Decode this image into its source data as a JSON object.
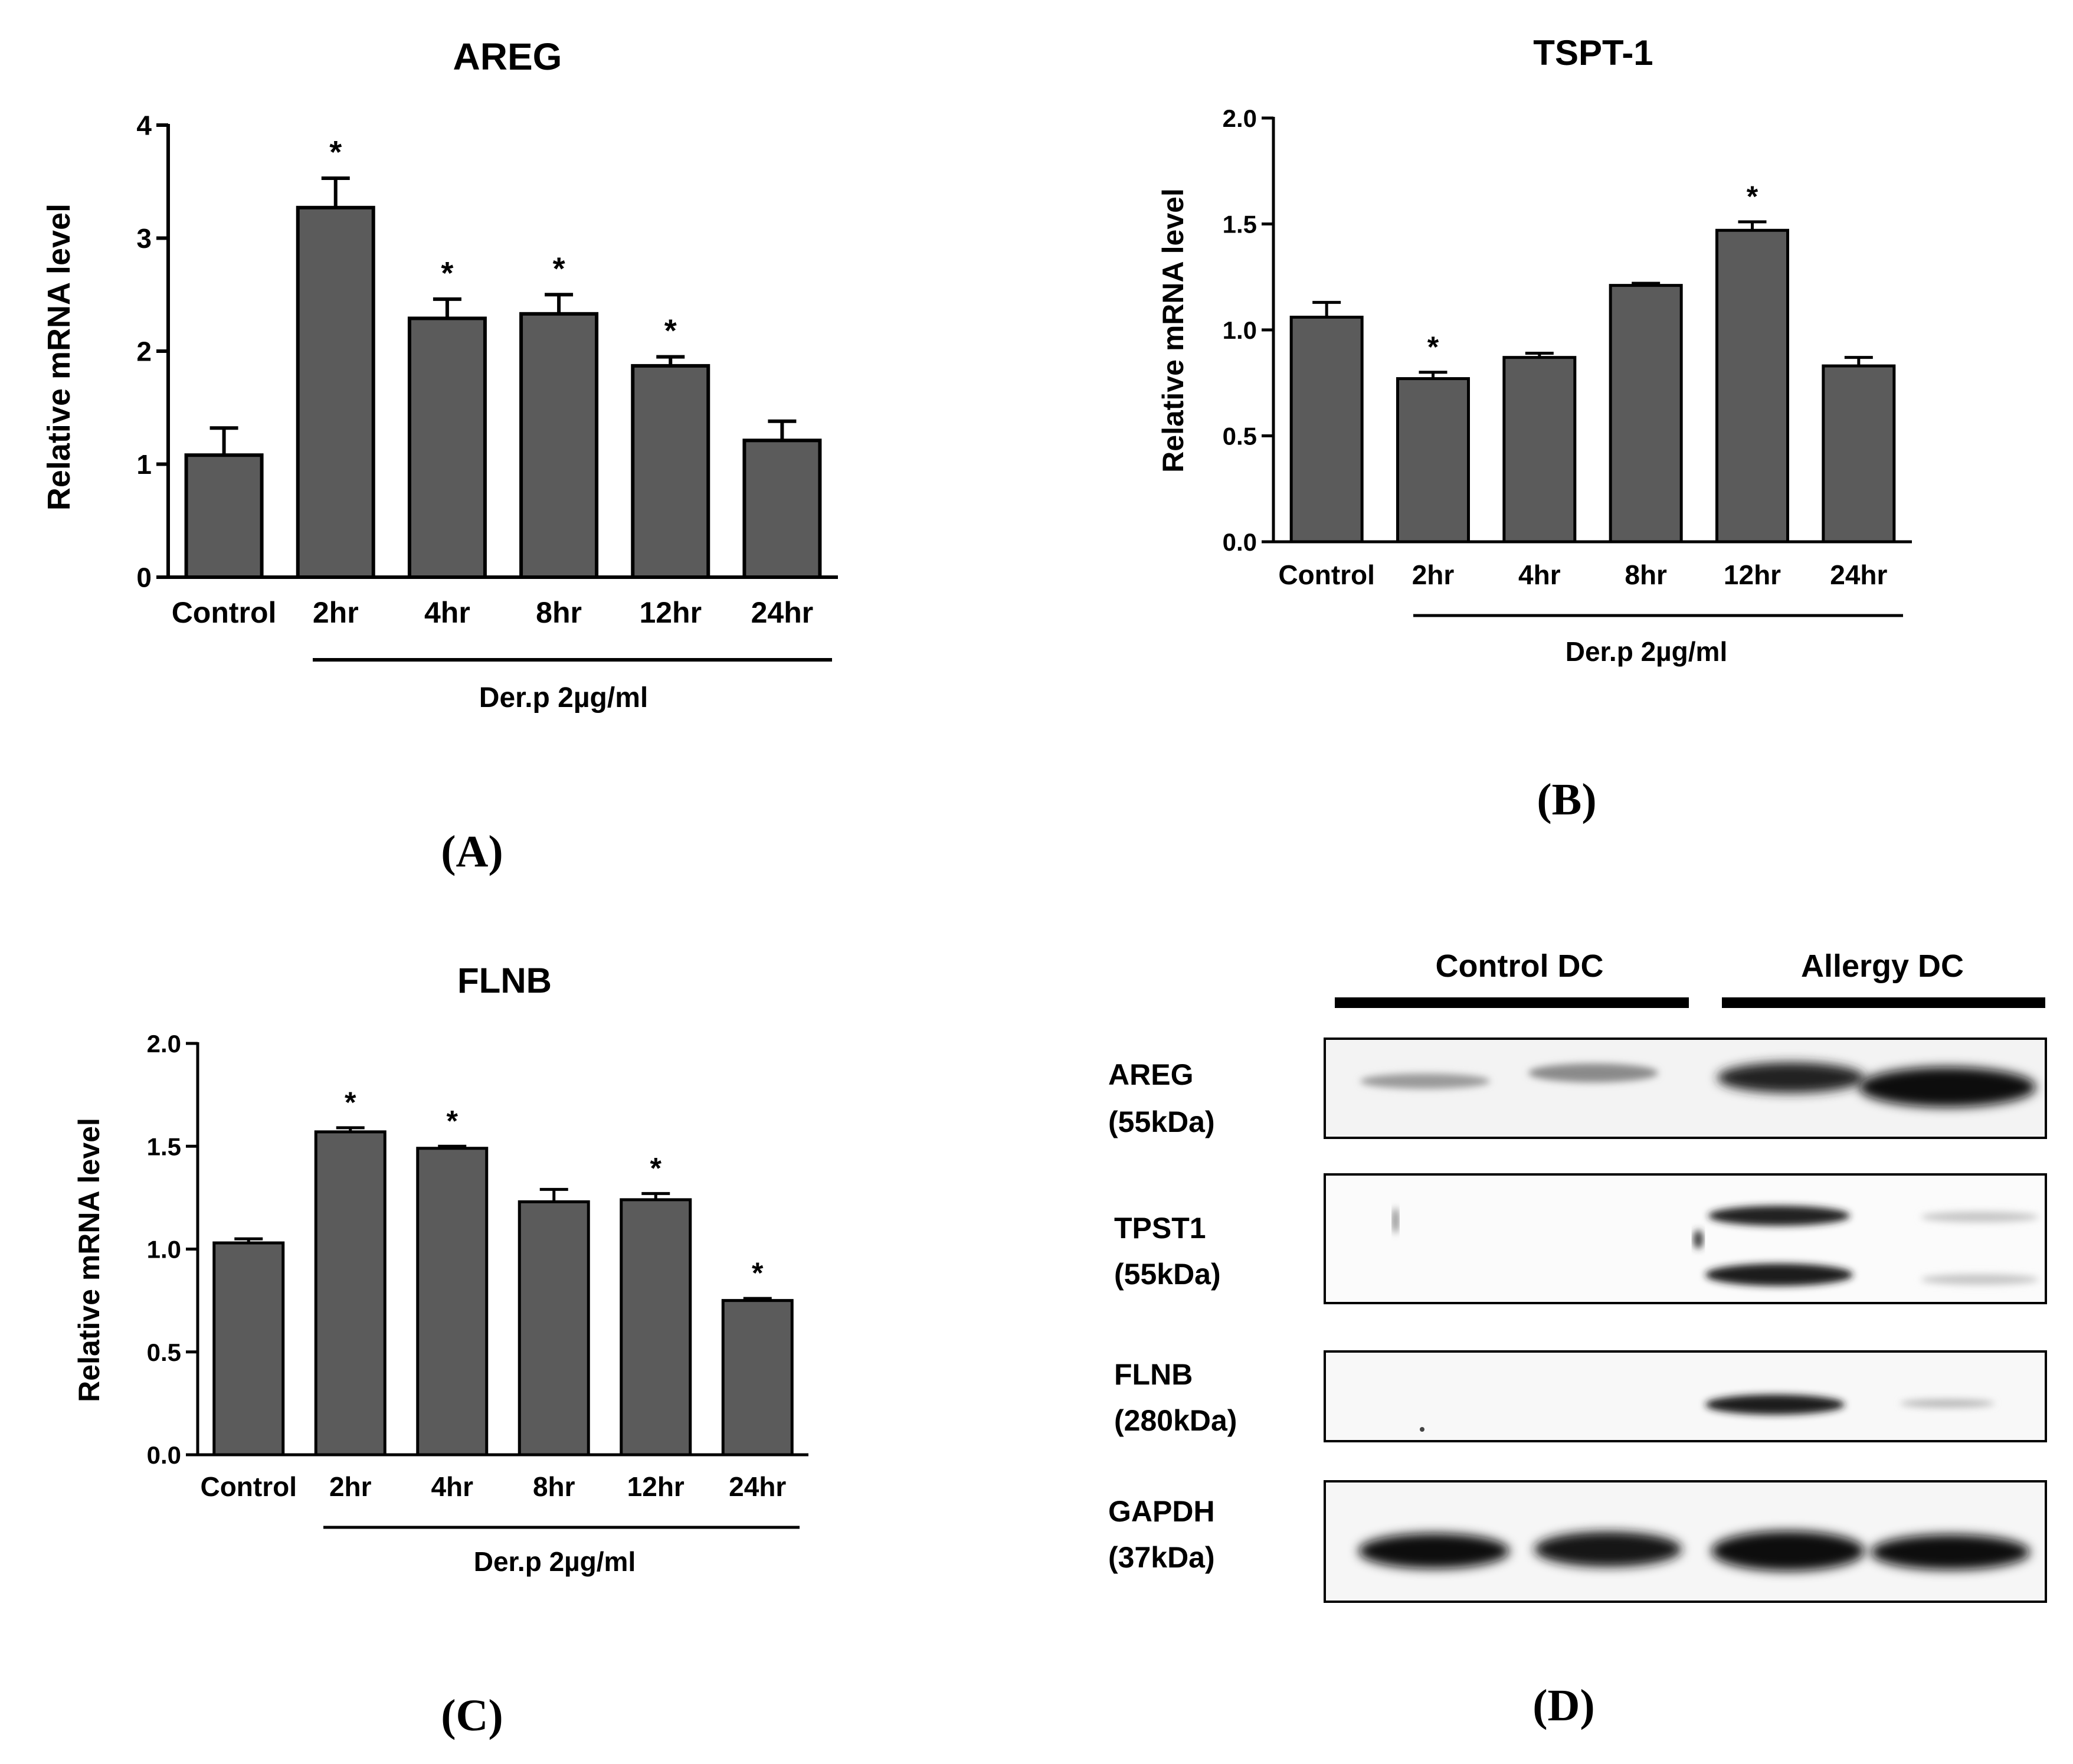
{
  "chart_data": [
    {
      "panel": "(A)",
      "type": "bar",
      "title": "AREG",
      "ylabel": "Relative mRNA level",
      "xlabel": "",
      "group_label": "Der.p 2µg/ml",
      "categories": [
        "Control",
        "2hr",
        "4hr",
        "8hr",
        "12hr",
        "24hr"
      ],
      "values": [
        1.08,
        3.27,
        2.29,
        2.33,
        1.87,
        1.21
      ],
      "errors": [
        0.24,
        0.26,
        0.17,
        0.17,
        0.08,
        0.17
      ],
      "significance": [
        "",
        "*",
        "*",
        "*",
        "*",
        ""
      ],
      "ylim": [
        0,
        4
      ],
      "yticks": [
        "0",
        "1",
        "2",
        "3",
        "4"
      ],
      "bar_color": "#5b5b5b"
    },
    {
      "panel": "(B)",
      "type": "bar",
      "title": "TSPT-1",
      "ylabel": "Relative mRNA level",
      "xlabel": "",
      "group_label": "Der.p 2µg/ml",
      "categories": [
        "Control",
        "2hr",
        "4hr",
        "8hr",
        "12hr",
        "24hr"
      ],
      "values": [
        1.06,
        0.77,
        0.87,
        1.21,
        1.47,
        0.83
      ],
      "errors": [
        0.07,
        0.03,
        0.02,
        0.01,
        0.04,
        0.04
      ],
      "significance": [
        "",
        "*",
        "",
        "",
        "*",
        ""
      ],
      "ylim": [
        0,
        2
      ],
      "yticks": [
        "0.0",
        "0.5",
        "1.0",
        "1.5",
        "2.0"
      ],
      "bar_color": "#5b5b5b"
    },
    {
      "panel": "(C)",
      "type": "bar",
      "title": "FLNB",
      "ylabel": "Relative mRNA level",
      "xlabel": "",
      "group_label": "Der.p 2µg/ml",
      "categories": [
        "Control",
        "2hr",
        "4hr",
        "8hr",
        "12hr",
        "24hr"
      ],
      "values": [
        1.03,
        1.57,
        1.49,
        1.23,
        1.24,
        0.75
      ],
      "errors": [
        0.02,
        0.02,
        0.01,
        0.06,
        0.03,
        0.01
      ],
      "significance": [
        "",
        "*",
        "*",
        "",
        "*",
        "*"
      ],
      "ylim": [
        0,
        2
      ],
      "yticks": [
        "0.0",
        "0.5",
        "1.0",
        "1.5",
        "2.0"
      ],
      "bar_color": "#5b5b5b"
    }
  ],
  "western_blot": {
    "panel": "(D)",
    "groups": [
      "Control DC",
      "Allergy DC"
    ],
    "rows": [
      {
        "name": "AREG",
        "size": "(55kDa)"
      },
      {
        "name": "TPST1",
        "size": "(55kDa)"
      },
      {
        "name": "FLNB",
        "size": "(280kDa)"
      },
      {
        "name": "GAPDH",
        "size": "(37kDa)"
      }
    ]
  }
}
